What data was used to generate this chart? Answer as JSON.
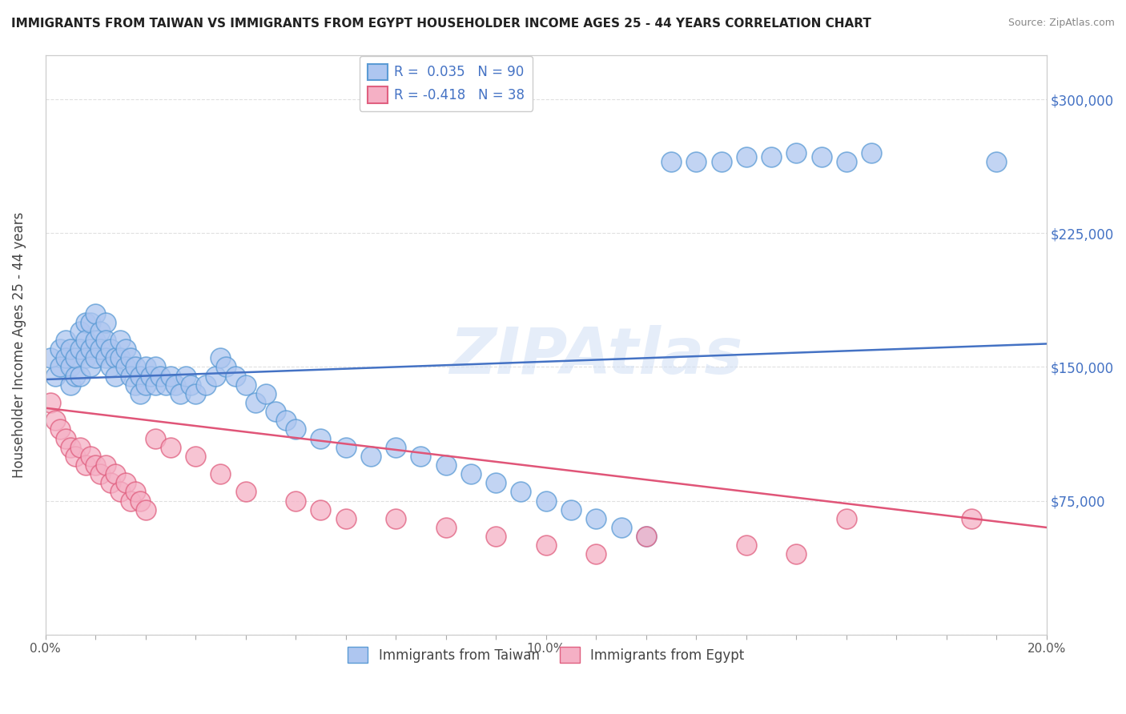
{
  "title": "IMMIGRANTS FROM TAIWAN VS IMMIGRANTS FROM EGYPT HOUSEHOLDER INCOME AGES 25 - 44 YEARS CORRELATION CHART",
  "source": "Source: ZipAtlas.com",
  "ylabel": "Householder Income Ages 25 - 44 years",
  "xlim": [
    0.0,
    0.2
  ],
  "ylim": [
    0,
    325000
  ],
  "yticks": [
    0,
    75000,
    150000,
    225000,
    300000
  ],
  "taiwan_color": "#aec6f0",
  "taiwan_edge": "#5b9bd5",
  "egypt_color": "#f5b0c5",
  "egypt_edge": "#e06080",
  "trend_taiwan_color": "#4472c4",
  "trend_egypt_color": "#e05578",
  "taiwan_R": 0.035,
  "taiwan_N": 90,
  "egypt_R": -0.418,
  "egypt_N": 38,
  "watermark": "ZIPAtlas",
  "background_color": "#ffffff",
  "grid_color": "#dddddd",
  "taiwan_x": [
    0.001,
    0.002,
    0.003,
    0.003,
    0.004,
    0.004,
    0.005,
    0.005,
    0.005,
    0.006,
    0.006,
    0.007,
    0.007,
    0.007,
    0.008,
    0.008,
    0.008,
    0.009,
    0.009,
    0.009,
    0.01,
    0.01,
    0.01,
    0.011,
    0.011,
    0.012,
    0.012,
    0.012,
    0.013,
    0.013,
    0.014,
    0.014,
    0.015,
    0.015,
    0.016,
    0.016,
    0.017,
    0.017,
    0.018,
    0.018,
    0.019,
    0.019,
    0.02,
    0.02,
    0.021,
    0.022,
    0.022,
    0.023,
    0.024,
    0.025,
    0.026,
    0.027,
    0.028,
    0.029,
    0.03,
    0.032,
    0.034,
    0.035,
    0.036,
    0.038,
    0.04,
    0.042,
    0.044,
    0.046,
    0.048,
    0.05,
    0.055,
    0.06,
    0.065,
    0.07,
    0.075,
    0.08,
    0.085,
    0.09,
    0.095,
    0.1,
    0.105,
    0.11,
    0.115,
    0.12,
    0.125,
    0.13,
    0.135,
    0.14,
    0.145,
    0.15,
    0.155,
    0.16,
    0.165,
    0.19
  ],
  "taiwan_y": [
    155000,
    145000,
    160000,
    150000,
    165000,
    155000,
    150000,
    140000,
    160000,
    145000,
    155000,
    170000,
    160000,
    145000,
    175000,
    165000,
    155000,
    175000,
    160000,
    150000,
    180000,
    165000,
    155000,
    170000,
    160000,
    175000,
    165000,
    155000,
    160000,
    150000,
    155000,
    145000,
    165000,
    155000,
    160000,
    150000,
    155000,
    145000,
    150000,
    140000,
    145000,
    135000,
    150000,
    140000,
    145000,
    150000,
    140000,
    145000,
    140000,
    145000,
    140000,
    135000,
    145000,
    140000,
    135000,
    140000,
    145000,
    155000,
    150000,
    145000,
    140000,
    130000,
    135000,
    125000,
    120000,
    115000,
    110000,
    105000,
    100000,
    105000,
    100000,
    95000,
    90000,
    85000,
    80000,
    75000,
    70000,
    65000,
    60000,
    55000,
    265000,
    265000,
    265000,
    268000,
    268000,
    270000,
    268000,
    265000,
    270000,
    265000
  ],
  "egypt_x": [
    0.001,
    0.002,
    0.003,
    0.004,
    0.005,
    0.006,
    0.007,
    0.008,
    0.009,
    0.01,
    0.011,
    0.012,
    0.013,
    0.014,
    0.015,
    0.016,
    0.017,
    0.018,
    0.019,
    0.02,
    0.022,
    0.025,
    0.03,
    0.035,
    0.04,
    0.05,
    0.055,
    0.06,
    0.07,
    0.08,
    0.09,
    0.1,
    0.11,
    0.12,
    0.14,
    0.15,
    0.16,
    0.185
  ],
  "egypt_y": [
    130000,
    120000,
    115000,
    110000,
    105000,
    100000,
    105000,
    95000,
    100000,
    95000,
    90000,
    95000,
    85000,
    90000,
    80000,
    85000,
    75000,
    80000,
    75000,
    70000,
    110000,
    105000,
    100000,
    90000,
    80000,
    75000,
    70000,
    65000,
    65000,
    60000,
    55000,
    50000,
    45000,
    55000,
    50000,
    45000,
    65000,
    65000
  ]
}
